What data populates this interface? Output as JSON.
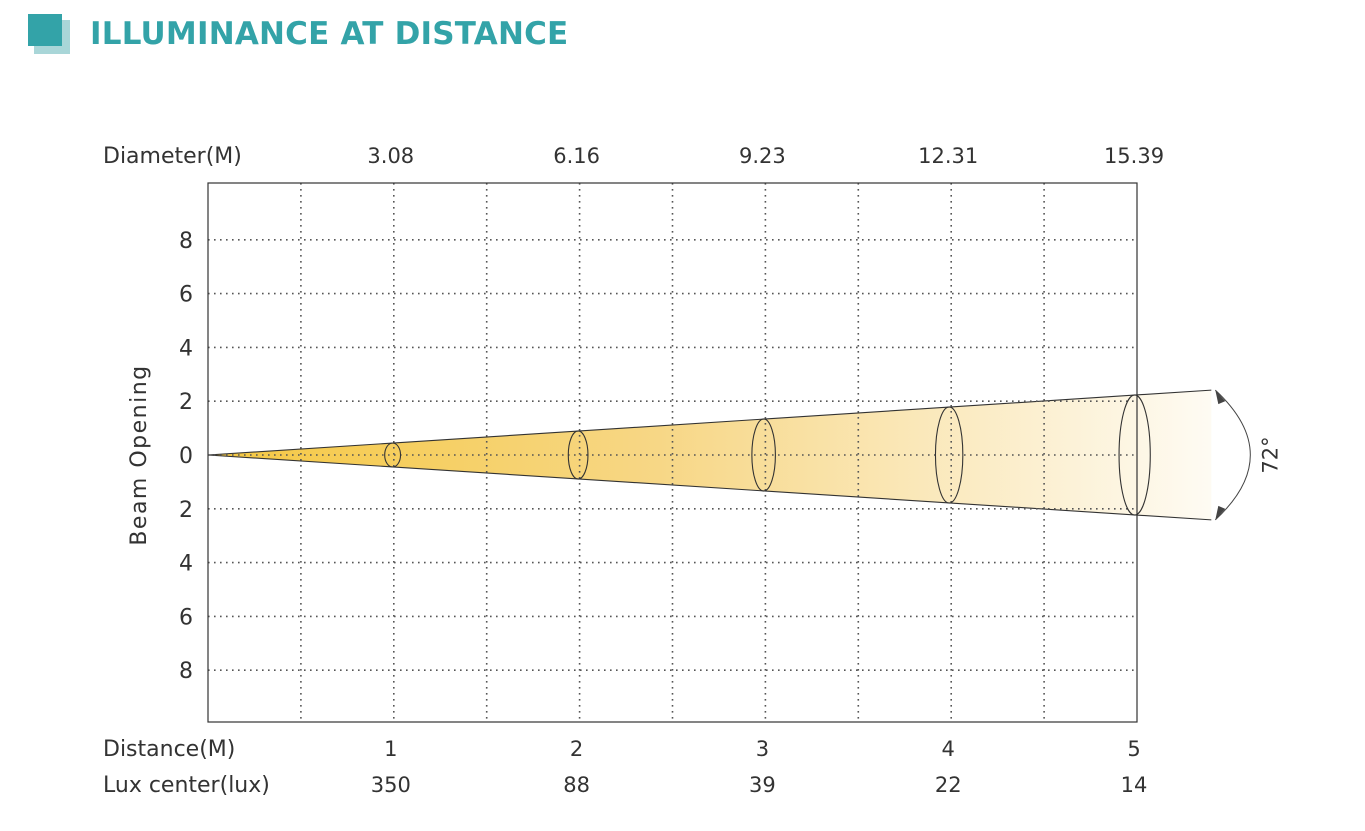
{
  "header": {
    "title": "ILLUMINANCE AT DISTANCE"
  },
  "colors": {
    "accent": "#33a3a8",
    "accent_light": "#a9d6d8",
    "beam_near": "#f5c842",
    "beam_far": "#fdf6e3"
  },
  "chart_data": {
    "type": "beam-diagram",
    "title": "ILLUMINANCE AT DISTANCE",
    "row_labels": {
      "diameter": "Diameter(M)",
      "distance": "Distance(M)",
      "lux": "Lux center(lux)"
    },
    "ylabel": "Beam Opening",
    "y_ticks": [
      "8",
      "6",
      "4",
      "2",
      "0",
      "2",
      "4",
      "6",
      "8"
    ],
    "beam_angle_label": "72°",
    "beam_angle_deg": 72,
    "distance": [
      "1",
      "2",
      "3",
      "4",
      "5"
    ],
    "diameter": [
      "3.08",
      "6.16",
      "9.23",
      "12.31",
      "15.39"
    ],
    "lux_center": [
      "350",
      "88",
      "39",
      "22",
      "14"
    ],
    "xlim": [
      0,
      5
    ],
    "ylim": [
      -8,
      8
    ],
    "grid": true
  }
}
